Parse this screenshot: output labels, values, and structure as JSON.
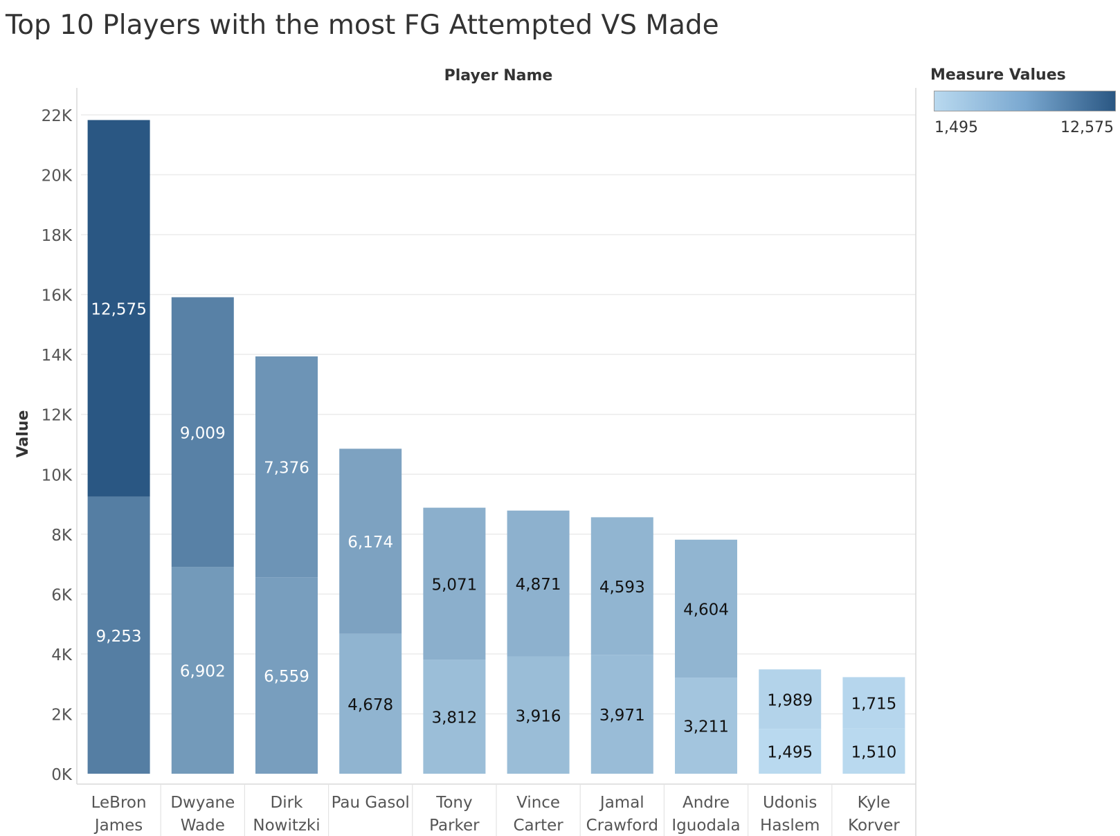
{
  "title": "Top 10 Players with the most FG Attempted VS Made",
  "chart_data": {
    "type": "bar",
    "stacked": true,
    "x_header": "Player Name",
    "ylabel": "Value",
    "ylim": [
      0,
      22000
    ],
    "y_ticks": [
      "0K",
      "2K",
      "4K",
      "6K",
      "8K",
      "10K",
      "12K",
      "14K",
      "16K",
      "18K",
      "20K",
      "22K"
    ],
    "grid": true,
    "categories": [
      [
        "LeBron",
        "James"
      ],
      [
        "Dwyane",
        "Wade"
      ],
      [
        "Dirk",
        "Nowitzki"
      ],
      [
        "Pau Gasol"
      ],
      [
        "Tony",
        "Parker"
      ],
      [
        "Vince",
        "Carter"
      ],
      [
        "Jamal",
        "Crawford"
      ],
      [
        "Andre",
        "Iguodala"
      ],
      [
        "Udonis",
        "Haslem"
      ],
      [
        "Kyle",
        "Korver"
      ]
    ],
    "series": [
      {
        "values": [
          9253,
          6902,
          6559,
          4678,
          3812,
          3916,
          3971,
          3211,
          1495,
          1510
        ],
        "labels": [
          "9,253",
          "6,902",
          "6,559",
          "4,678",
          "3,812",
          "3,916",
          "3,971",
          "3,211",
          "1,495",
          "1,510"
        ]
      },
      {
        "values": [
          12575,
          9009,
          7376,
          6174,
          5071,
          4871,
          4593,
          4604,
          1989,
          1715
        ],
        "labels": [
          "12,575",
          "9,009",
          "7,376",
          "6,174",
          "5,071",
          "4,871",
          "4,593",
          "4,604",
          "1,989",
          "1,715"
        ]
      }
    ],
    "legend": {
      "title": "Measure Values",
      "min": 1495,
      "max": 12575,
      "min_label": "1,495",
      "max_label": "12,575",
      "color_low": "#b9d9ef",
      "color_high": "#2a5783",
      "placement": "top-right"
    }
  }
}
